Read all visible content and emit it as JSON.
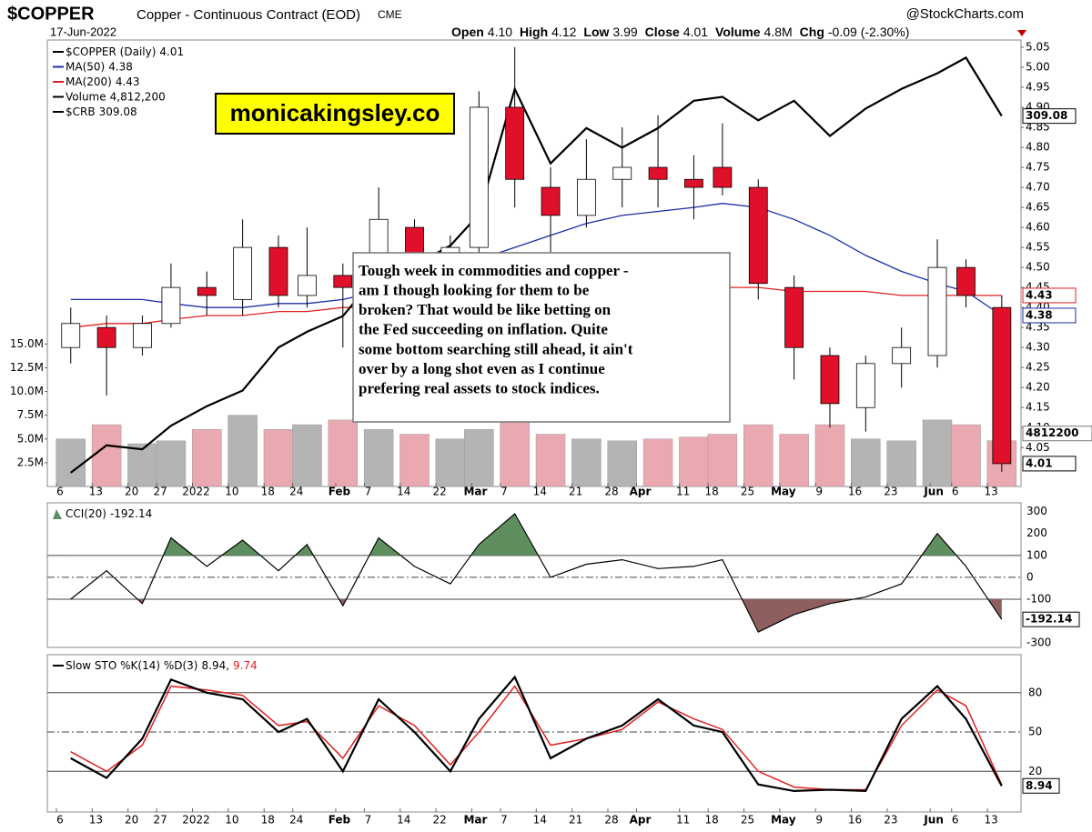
{
  "header": {
    "symbol": "$COPPER",
    "description": "Copper - Continuous Contract (EOD)",
    "exchange": "CME",
    "source": "@StockCharts.com",
    "date": "17-Jun-2022",
    "items": [
      {
        "label": "Open",
        "value": "4.10"
      },
      {
        "label": "High",
        "value": "4.12"
      },
      {
        "label": "Low",
        "value": "3.99"
      },
      {
        "label": "Close",
        "value": "4.01"
      },
      {
        "label": "Volume",
        "value": "4.8M"
      },
      {
        "label": "Chg",
        "value": "-0.09 (-2.30%)"
      }
    ]
  },
  "watermark": "monicakingsley.co",
  "annotation": [
    "Tough week in commodities and copper -",
    "am I though looking for them to be",
    "broken? That would be like betting on",
    "the Fed succeeding on inflation. Quite",
    "some bottom searching still ahead, it ain't",
    "over by a long shot even as I continue",
    "prefering real assets to stock indices."
  ],
  "chart_data": [
    {
      "type": "candlestick",
      "name": "$COPPER (Daily)",
      "last_label": "4.01",
      "x": [
        0,
        5,
        10,
        14,
        19,
        24,
        29,
        33,
        38,
        43,
        48,
        53,
        57,
        62,
        67,
        72,
        77,
        82,
        87,
        91,
        96,
        101,
        106,
        111,
        116,
        121,
        125,
        130
      ],
      "open": [
        4.3,
        4.35,
        4.3,
        4.36,
        4.45,
        4.42,
        4.55,
        4.43,
        4.48,
        4.45,
        4.6,
        4.52,
        4.55,
        4.9,
        4.7,
        4.63,
        4.72,
        4.75,
        4.72,
        4.75,
        4.7,
        4.45,
        4.28,
        4.15,
        4.26,
        4.28,
        4.5,
        4.4
      ],
      "high": [
        4.4,
        4.38,
        4.38,
        4.51,
        4.49,
        4.62,
        4.58,
        4.6,
        4.51,
        4.7,
        4.62,
        4.58,
        4.94,
        5.05,
        4.75,
        4.82,
        4.85,
        4.88,
        4.78,
        4.86,
        4.72,
        4.48,
        4.3,
        4.28,
        4.35,
        4.57,
        4.52,
        4.43
      ],
      "low": [
        4.26,
        4.18,
        4.28,
        4.35,
        4.38,
        4.38,
        4.4,
        4.4,
        4.3,
        4.42,
        4.48,
        4.45,
        4.53,
        4.65,
        4.52,
        4.6,
        4.65,
        4.65,
        4.62,
        4.68,
        4.42,
        4.22,
        4.1,
        4.09,
        4.2,
        4.25,
        4.4,
        3.99
      ],
      "close": [
        4.36,
        4.3,
        4.36,
        4.45,
        4.43,
        4.55,
        4.43,
        4.48,
        4.45,
        4.62,
        4.52,
        4.55,
        4.9,
        4.72,
        4.63,
        4.72,
        4.75,
        4.72,
        4.7,
        4.7,
        4.46,
        4.3,
        4.16,
        4.26,
        4.3,
        4.5,
        4.43,
        4.01
      ],
      "up_color": "#ffffff",
      "down_color": "#e0102a",
      "ylim": [
        3.953,
        5.068
      ],
      "yticks": [
        4.05,
        {
          "value": 4.1,
          "label": "4.10"
        },
        4.15,
        {
          "value": 4.2,
          "label": "4.20"
        },
        4.25,
        {
          "value": 4.3,
          "label": "4.30"
        },
        4.35,
        {
          "value": 4.4,
          "label": "4.40"
        },
        4.45,
        {
          "value": 4.5,
          "label": "4.50"
        },
        4.55,
        {
          "value": 4.6,
          "label": "4.60"
        },
        4.65,
        {
          "value": 4.7,
          "label": "4.70"
        },
        4.75,
        {
          "value": 4.8,
          "label": "4.80"
        },
        4.85,
        {
          "value": 4.9,
          "label": "4.90"
        },
        4.95,
        {
          "value": 5,
          "label": "5.00"
        },
        5.05
      ],
      "xticks": [
        {
          "value": 0,
          "label": "6"
        },
        {
          "value": 5,
          "label": "13"
        },
        {
          "value": 10,
          "label": "20"
        },
        {
          "value": 14,
          "label": "27"
        },
        {
          "value": 19,
          "label": "2022"
        },
        {
          "value": 24,
          "label": "10"
        },
        {
          "value": 29,
          "label": "18"
        },
        {
          "value": 33,
          "label": "24"
        },
        {
          "value": 39,
          "label": "Feb"
        },
        {
          "value": 43,
          "label": "7"
        },
        {
          "value": 48,
          "label": "14"
        },
        {
          "value": 53,
          "label": "22"
        },
        {
          "value": 58,
          "label": "Mar"
        },
        {
          "value": 62,
          "label": "7"
        },
        {
          "value": 67,
          "label": "14"
        },
        {
          "value": 72,
          "label": "21"
        },
        {
          "value": 77,
          "label": "28"
        },
        {
          "value": 81,
          "label": "Apr"
        },
        {
          "value": 87,
          "label": "11"
        },
        {
          "value": 91,
          "label": "18"
        },
        {
          "value": 96,
          "label": "25"
        },
        {
          "value": 101,
          "label": "May"
        },
        {
          "value": 106,
          "label": "9"
        },
        {
          "value": 111,
          "label": "16"
        },
        {
          "value": 116,
          "label": "23"
        },
        {
          "value": 122,
          "label": "Jun"
        },
        {
          "value": 125,
          "label": "6"
        },
        {
          "value": 130,
          "label": "13"
        }
      ],
      "series": [
        {
          "name": "MA(50)",
          "color": "#1a2fa8",
          "last_label": "4.38",
          "values": [
            4.42,
            4.42,
            4.42,
            4.41,
            4.4,
            4.4,
            4.41,
            4.41,
            4.42,
            4.44,
            4.47,
            4.5,
            4.52,
            4.55,
            4.58,
            4.61,
            4.63,
            4.64,
            4.65,
            4.66,
            4.65,
            4.62,
            4.58,
            4.53,
            4.49,
            4.46,
            4.44,
            4.38
          ]
        },
        {
          "name": "MA(200)",
          "color": "#e02020",
          "last_label": "4.43",
          "values": [
            4.35,
            4.36,
            4.36,
            4.37,
            4.38,
            4.38,
            4.39,
            4.39,
            4.4,
            4.4,
            4.41,
            4.41,
            4.42,
            4.42,
            4.43,
            4.43,
            4.44,
            4.44,
            4.44,
            4.45,
            4.45,
            4.44,
            4.44,
            4.44,
            4.43,
            4.43,
            4.43,
            4.43
          ]
        },
        {
          "name": "$CRB",
          "color": "#000000",
          "axis": "y3",
          "last_label": "309.08",
          "values": [
            218,
            225,
            224,
            230,
            235,
            239,
            250,
            254,
            258,
            269,
            271,
            276,
            284,
            316,
            297,
            306,
            301,
            306,
            313,
            314,
            308,
            313,
            304,
            311,
            316,
            320,
            324,
            309.08
          ]
        }
      ],
      "y3lim": [
        214.5,
        328.5
      ],
      "volume": {
        "name": "Volume",
        "legend_value": "4,812,200",
        "last_label": "4812200",
        "up_color": "#b4b4b4",
        "down_color": "#eaa8b0",
        "values": [
          5000000,
          6500000,
          4500000,
          4800000,
          6000000,
          7500000,
          6000000,
          6500000,
          7000000,
          6000000,
          5500000,
          5000000,
          6000000,
          7500000,
          5500000,
          5000000,
          4800000,
          5000000,
          5200000,
          5500000,
          6500000,
          5500000,
          6500000,
          5000000,
          4800000,
          7000000,
          6500000,
          4812200
        ],
        "ylim": [
          0,
          47000000
        ],
        "yticks": [
          {
            "value": 2500000,
            "label": "2.5M"
          },
          {
            "value": 5000000,
            "label": "5.0M"
          },
          {
            "value": 7500000,
            "label": "7.5M"
          },
          {
            "value": 10000000,
            "label": "10.0M"
          },
          {
            "value": 12500000,
            "label": "12.5M"
          },
          {
            "value": 15000000,
            "label": "15.0M"
          }
        ]
      }
    },
    {
      "type": "cci",
      "name": "CCI(20)",
      "last_label": "-192.14",
      "color": "#000000",
      "x": [
        0,
        5,
        10,
        14,
        19,
        24,
        29,
        33,
        38,
        43,
        48,
        53,
        57,
        62,
        67,
        72,
        77,
        82,
        87,
        91,
        96,
        101,
        106,
        111,
        116,
        121,
        125,
        130
      ],
      "values": [
        -100,
        30,
        -120,
        180,
        50,
        170,
        30,
        150,
        -130,
        180,
        50,
        -30,
        150,
        290,
        0,
        60,
        80,
        40,
        50,
        80,
        -250,
        -170,
        -120,
        -90,
        -30,
        200,
        50,
        -192.14
      ],
      "bands": [
        100,
        -100
      ],
      "fill_colors": [
        "#5f8f5f",
        "#8f5f5f"
      ],
      "ylim": [
        -320,
        340
      ],
      "yticks": [
        -300,
        -100,
        0,
        100,
        200,
        300
      ]
    },
    {
      "type": "sto",
      "name": "Slow STO %K(14) %D(3)",
      "x": [
        0,
        5,
        10,
        14,
        19,
        24,
        29,
        33,
        38,
        43,
        48,
        53,
        57,
        62,
        67,
        72,
        77,
        82,
        87,
        91,
        96,
        101,
        106,
        111,
        116,
        121,
        125,
        130
      ],
      "series": [
        {
          "name": "%K",
          "color": "#000000",
          "legend_label": "8.94,",
          "last_label": "8.94",
          "values": [
            30,
            15,
            45,
            90,
            80,
            75,
            50,
            60,
            20,
            75,
            50,
            20,
            60,
            92,
            30,
            45,
            55,
            75,
            55,
            50,
            10,
            5,
            6,
            5,
            60,
            85,
            60,
            8.94
          ]
        },
        {
          "name": "%D",
          "color": "#e02020",
          "legend_label": "9.74",
          "values": [
            35,
            20,
            40,
            85,
            82,
            78,
            55,
            58,
            30,
            70,
            55,
            25,
            50,
            85,
            40,
            45,
            52,
            73,
            60,
            52,
            20,
            8,
            6,
            6,
            55,
            82,
            70,
            9.74
          ]
        }
      ],
      "ylim": [
        -11,
        109
      ],
      "yticks": [
        20,
        50,
        80
      ],
      "xticks": [
        {
          "value": 0,
          "label": "6"
        },
        {
          "value": 5,
          "label": "13"
        },
        {
          "value": 10,
          "label": "20"
        },
        {
          "value": 14,
          "label": "27"
        },
        {
          "value": 19,
          "label": "2022"
        },
        {
          "value": 24,
          "label": "10"
        },
        {
          "value": 29,
          "label": "18"
        },
        {
          "value": 33,
          "label": "24"
        },
        {
          "value": 39,
          "label": "Feb"
        },
        {
          "value": 43,
          "label": "7"
        },
        {
          "value": 48,
          "label": "14"
        },
        {
          "value": 53,
          "label": "22"
        },
        {
          "value": 58,
          "label": "Mar"
        },
        {
          "value": 62,
          "label": "7"
        },
        {
          "value": 67,
          "label": "14"
        },
        {
          "value": 72,
          "label": "21"
        },
        {
          "value": 77,
          "label": "28"
        },
        {
          "value": 81,
          "label": "Apr"
        },
        {
          "value": 87,
          "label": "11"
        },
        {
          "value": 91,
          "label": "18"
        },
        {
          "value": 96,
          "label": "25"
        },
        {
          "value": 101,
          "label": "May"
        },
        {
          "value": 106,
          "label": "9"
        },
        {
          "value": 111,
          "label": "16"
        },
        {
          "value": 116,
          "label": "23"
        },
        {
          "value": 122,
          "label": "Jun"
        },
        {
          "value": 125,
          "label": "6"
        },
        {
          "value": 130,
          "label": "13"
        }
      ]
    }
  ]
}
